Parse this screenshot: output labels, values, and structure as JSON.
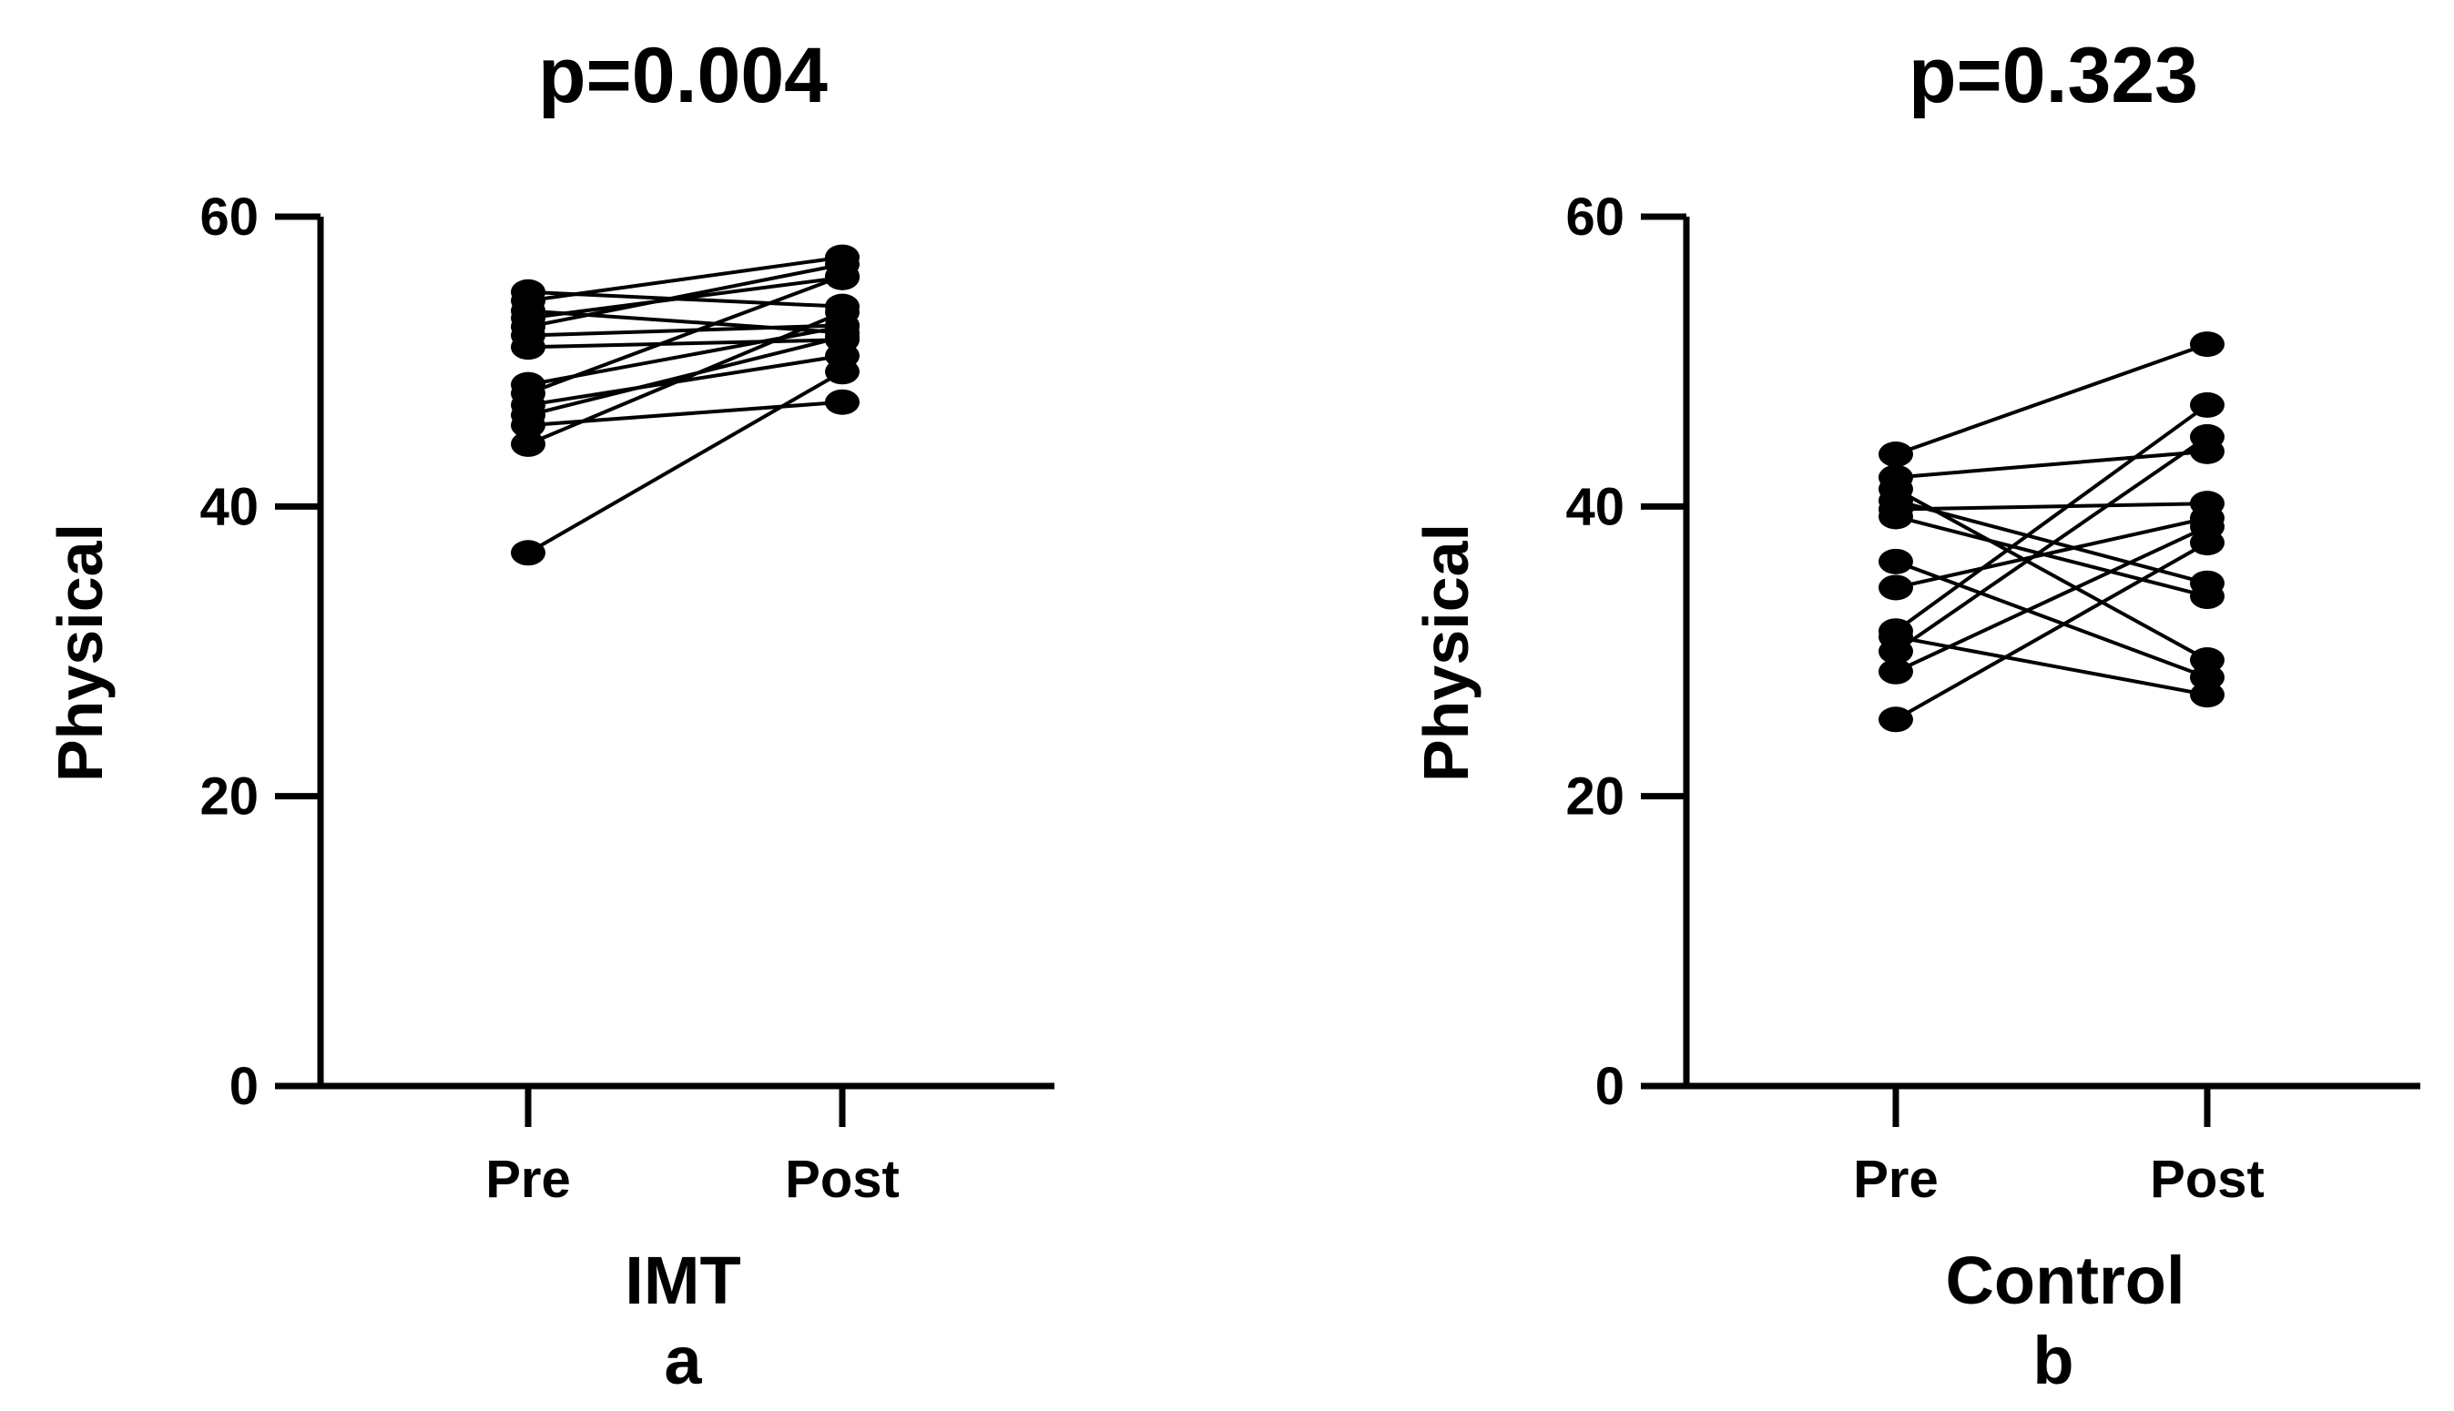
{
  "chart_data": [
    {
      "type": "line",
      "title": "p=0.004",
      "ylabel": "Physical",
      "xlabel": "IMT",
      "panel_label": "a",
      "categories": [
        "Pre",
        "Post"
      ],
      "ylim": [
        0,
        60
      ],
      "yticks": [
        0,
        20,
        40,
        60
      ],
      "series": [
        {
          "values": [
            54.8,
            53.8
          ]
        },
        {
          "values": [
            54.2,
            57.2
          ]
        },
        {
          "values": [
            53.5,
            52.0
          ]
        },
        {
          "values": [
            53.0,
            55.8
          ]
        },
        {
          "values": [
            52.4,
            56.7
          ]
        },
        {
          "values": [
            51.8,
            52.5
          ]
        },
        {
          "values": [
            51.0,
            51.5
          ]
        },
        {
          "values": [
            48.4,
            52.4
          ]
        },
        {
          "values": [
            47.8,
            55.9
          ]
        },
        {
          "values": [
            47.0,
            50.4
          ]
        },
        {
          "values": [
            46.3,
            51.7
          ]
        },
        {
          "values": [
            45.6,
            47.2
          ]
        },
        {
          "values": [
            44.3,
            53.4
          ]
        },
        {
          "values": [
            36.8,
            49.3
          ]
        }
      ]
    },
    {
      "type": "line",
      "title": "p=0.323",
      "ylabel": "Physical",
      "xlabel": "Control",
      "panel_label": "b",
      "categories": [
        "Pre",
        "Post"
      ],
      "ylim": [
        0,
        60
      ],
      "yticks": [
        0,
        20,
        40,
        60
      ],
      "series": [
        {
          "values": [
            43.6,
            51.2
          ]
        },
        {
          "values": [
            42.0,
            43.8
          ]
        },
        {
          "values": [
            41.2,
            29.4
          ]
        },
        {
          "values": [
            40.4,
            34.7
          ]
        },
        {
          "values": [
            39.8,
            40.2
          ]
        },
        {
          "values": [
            39.3,
            33.8
          ]
        },
        {
          "values": [
            36.2,
            28.2
          ]
        },
        {
          "values": [
            34.4,
            39.2
          ]
        },
        {
          "values": [
            31.4,
            47.0
          ]
        },
        {
          "values": [
            31.0,
            27.0
          ]
        },
        {
          "values": [
            30.0,
            44.8
          ]
        },
        {
          "values": [
            28.6,
            38.6
          ]
        },
        {
          "values": [
            25.3,
            37.5
          ]
        }
      ]
    }
  ]
}
